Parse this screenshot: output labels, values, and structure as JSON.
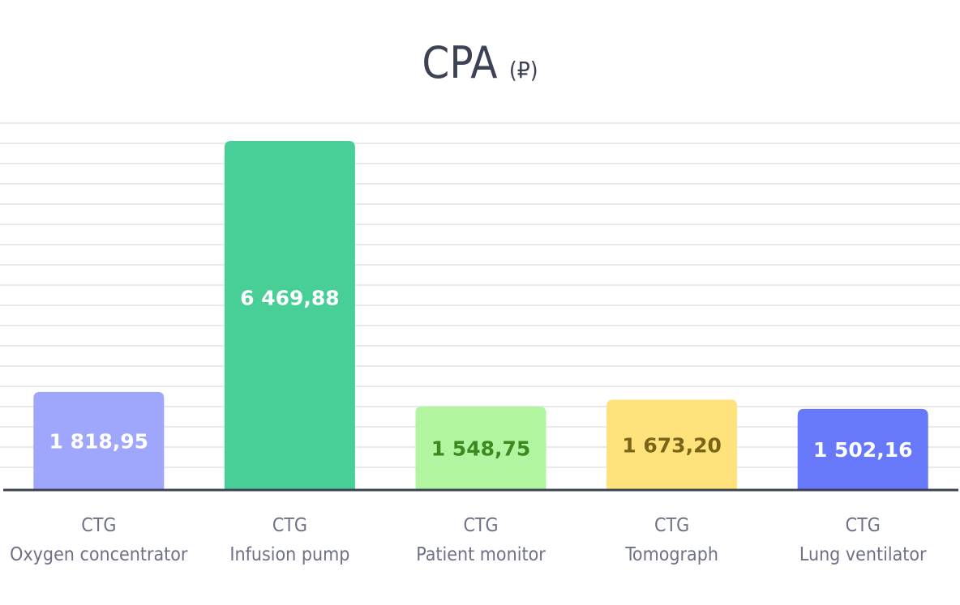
{
  "chart_data": {
    "type": "bar",
    "title": "CPA",
    "title_unit": "(₽)",
    "categories": [
      [
        "CTG",
        "Oxygen concentrator"
      ],
      [
        "CTG",
        "Infusion pump"
      ],
      [
        "CTG",
        "Patient monitor"
      ],
      [
        "CTG",
        "Tomograph"
      ],
      [
        "CTG",
        "Lung ventilator"
      ]
    ],
    "values": [
      1818.95,
      6469.88,
      1548.75,
      1673.2,
      1502.16
    ],
    "value_labels": [
      "1 818,95",
      "6 469,88",
      "1 548,75",
      "1 673,20",
      "1 502,16"
    ],
    "colors": [
      "#9ea7fb",
      "#48cf98",
      "#b2f5a0",
      "#fee27c",
      "#6878fa"
    ],
    "label_colors": [
      "#ffffff",
      "#ffffff",
      "#3c8a1e",
      "#7a6418",
      "#ffffff"
    ],
    "ylim": [
      0,
      6800
    ],
    "grid": true,
    "legend": "none"
  }
}
